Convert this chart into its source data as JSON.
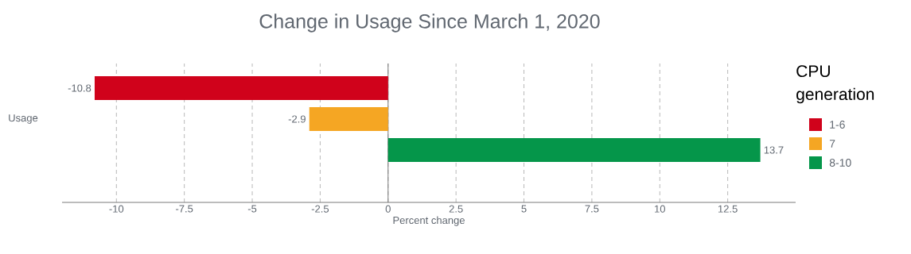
{
  "chart_data": {
    "type": "bar",
    "orientation": "horizontal",
    "title": "Change in Usage Since March 1, 2020",
    "xlabel": "Percent change",
    "legend_title": "CPU generation",
    "categories": [
      "Usage"
    ],
    "series": [
      {
        "name": "1-6",
        "color": "#d0021b",
        "values": [
          -10.8
        ]
      },
      {
        "name": "7",
        "color": "#f5a623",
        "values": [
          -2.9
        ]
      },
      {
        "name": "8-10",
        "color": "#05964a",
        "values": [
          13.7
        ]
      }
    ],
    "xlim": [
      -12,
      15
    ],
    "xticks": [
      -10,
      -7.5,
      -5,
      -2.5,
      0,
      2.5,
      5,
      7.5,
      10,
      12.5
    ],
    "grid": "x",
    "legend": "right",
    "data_labels": true
  }
}
